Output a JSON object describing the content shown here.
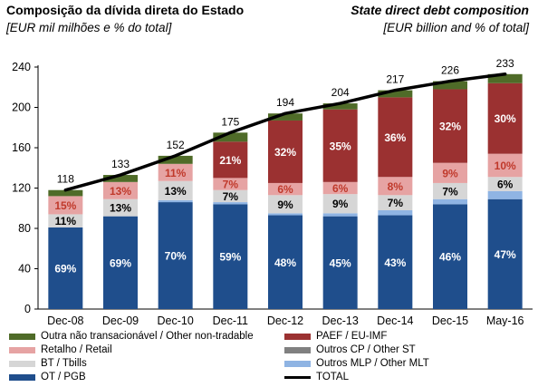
{
  "header": {
    "title_pt": "Composição da dívida direta do Estado",
    "subtitle_pt": "[EUR mil milhões e % do total]",
    "title_en": "State direct debt composition",
    "subtitle_en": "[EUR billion and % of total]"
  },
  "legend": {
    "items": [
      {
        "key": "other_nontradable",
        "label": "Outra não transacionável / Other non-tradable",
        "color": "#4f6b28",
        "kind": "swatch"
      },
      {
        "key": "paef",
        "label": "PAEF / EU-IMF",
        "color": "#9b3131",
        "kind": "swatch"
      },
      {
        "key": "retail",
        "label": "Retalho / Retail",
        "color": "#e6a3a3",
        "kind": "swatch"
      },
      {
        "key": "other_st",
        "label": "Outros CP / Other ST",
        "color": "#808080",
        "kind": "swatch"
      },
      {
        "key": "tbills",
        "label": "BT / Tbills",
        "color": "#d6d6d6",
        "kind": "swatch"
      },
      {
        "key": "other_mlt",
        "label": "Outros MLP / Other MLT",
        "color": "#8fb4e3",
        "kind": "swatch"
      },
      {
        "key": "pgb",
        "label": "OT / PGB",
        "color": "#1f4e8c",
        "kind": "swatch"
      },
      {
        "key": "total",
        "label": "TOTAL",
        "color": "#000000",
        "kind": "line"
      }
    ]
  },
  "chart_data": {
    "type": "bar",
    "stacked": true,
    "categories": [
      "Dec-08",
      "Dec-09",
      "Dec-10",
      "Dec-11",
      "Dec-12",
      "Dec-13",
      "Dec-14",
      "Dec-15",
      "May-16"
    ],
    "ylim": [
      0,
      240
    ],
    "yticks": [
      0,
      40,
      80,
      120,
      160,
      200,
      240
    ],
    "grid": false,
    "legend_position": "bottom",
    "series": [
      {
        "name": "OT / PGB",
        "key": "pgb",
        "color": "#1f4e8c",
        "values": [
          81,
          92,
          106,
          104,
          93,
          92,
          93,
          104,
          109
        ],
        "labels": [
          "69%",
          "69%",
          "70%",
          "59%",
          "48%",
          "45%",
          "43%",
          "46%",
          "47%"
        ],
        "label_color": "#ffffff"
      },
      {
        "name": "Outros MLP / Other MLT",
        "key": "other_mlt",
        "color": "#8fb4e3",
        "values": [
          0,
          0,
          2,
          2,
          2,
          3,
          5,
          5,
          8
        ],
        "labels": [
          "",
          "",
          "",
          "",
          "",
          "",
          "",
          "",
          ""
        ]
      },
      {
        "name": "BT / Tbills",
        "key": "tbills",
        "color": "#d6d6d6",
        "values": [
          13,
          17,
          19,
          12,
          18,
          19,
          15,
          16,
          14
        ],
        "labels": [
          "11%",
          "13%",
          "13%",
          "7%",
          "9%",
          "9%",
          "7%",
          "7%",
          "6%"
        ],
        "label_color": "#000000"
      },
      {
        "name": "Outros CP / Other ST",
        "key": "other_st",
        "color": "#808080",
        "values": [
          0,
          0,
          0,
          0,
          0,
          0,
          0,
          0,
          0
        ],
        "labels": [
          "",
          "",
          "",
          "",
          "",
          "",
          "",
          "",
          ""
        ]
      },
      {
        "name": "Retalho / Retail",
        "key": "retail",
        "color": "#e6a3a3",
        "values": [
          18,
          17,
          17,
          12,
          12,
          12,
          18,
          20,
          23
        ],
        "labels": [
          "15%",
          "13%",
          "11%",
          "7%",
          "6%",
          "6%",
          "8%",
          "9%",
          "10%"
        ],
        "label_color": "#c0392b"
      },
      {
        "name": "PAEF / EU-IMF",
        "key": "paef",
        "color": "#9b3131",
        "values": [
          0,
          0,
          0,
          36,
          62,
          72,
          79,
          73,
          70
        ],
        "labels": [
          "",
          "",
          "",
          "21%",
          "32%",
          "35%",
          "36%",
          "32%",
          "30%"
        ],
        "label_color": "#ffffff"
      },
      {
        "name": "Outra não transacionável / Other non-tradable",
        "key": "other_nontradable",
        "color": "#4f6b28",
        "values": [
          6,
          7,
          8,
          9,
          7,
          6,
          7,
          8,
          9
        ],
        "labels": [
          "",
          "",
          "",
          "",
          "",
          "",
          "",
          "",
          ""
        ]
      }
    ],
    "total": {
      "name": "TOTAL",
      "color": "#000000",
      "values": [
        118,
        133,
        152,
        175,
        194,
        204,
        217,
        226,
        233
      ]
    }
  }
}
